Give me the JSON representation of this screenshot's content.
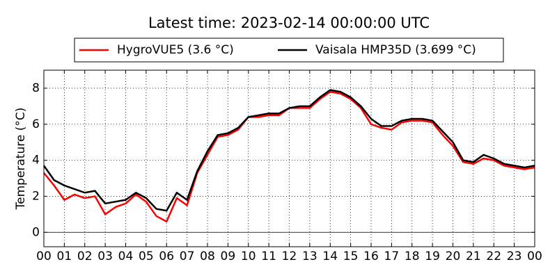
{
  "chart_data": {
    "type": "line",
    "title": "Latest time: 2023-02-14 00:00:00 UTC",
    "ylabel": "Temperature (°C)",
    "x": [
      0,
      0.5,
      1,
      1.5,
      2,
      2.5,
      3,
      3.5,
      4,
      4.5,
      5,
      5.5,
      6,
      6.5,
      7,
      7.5,
      8,
      8.5,
      9,
      9.5,
      10,
      10.5,
      11,
      11.5,
      12,
      12.5,
      13,
      13.5,
      14,
      14.5,
      15,
      15.5,
      16,
      16.5,
      17,
      17.5,
      18,
      18.5,
      19,
      19.5,
      20,
      20.5,
      21,
      21.5,
      22,
      22.5,
      23,
      23.5,
      24
    ],
    "series": [
      {
        "name": "HygroVUE5 (3.6 °C)",
        "color": "#ff0000",
        "values": [
          3.3,
          2.6,
          1.8,
          2.1,
          1.9,
          2.0,
          1.0,
          1.4,
          1.6,
          2.1,
          1.7,
          0.9,
          0.6,
          1.9,
          1.5,
          3.3,
          4.3,
          5.3,
          5.4,
          5.7,
          6.4,
          6.4,
          6.5,
          6.5,
          6.9,
          6.9,
          6.9,
          7.4,
          7.8,
          7.7,
          7.4,
          6.9,
          6.0,
          5.8,
          5.7,
          6.1,
          6.2,
          6.2,
          6.1,
          5.4,
          4.8,
          3.9,
          3.8,
          4.1,
          4.0,
          3.7,
          3.6,
          3.5,
          3.6
        ]
      },
      {
        "name": "Vaisala HMP35D (3.699 °C)",
        "color": "#000000",
        "values": [
          3.7,
          2.9,
          2.6,
          2.4,
          2.2,
          2.3,
          1.6,
          1.7,
          1.8,
          2.2,
          1.9,
          1.3,
          1.2,
          2.2,
          1.8,
          3.4,
          4.5,
          5.4,
          5.5,
          5.8,
          6.4,
          6.5,
          6.6,
          6.6,
          6.9,
          7.0,
          7.0,
          7.5,
          7.9,
          7.8,
          7.5,
          7.0,
          6.3,
          5.9,
          5.9,
          6.2,
          6.3,
          6.3,
          6.2,
          5.6,
          5.0,
          4.0,
          3.9,
          4.3,
          4.1,
          3.8,
          3.7,
          3.6,
          3.7
        ]
      }
    ],
    "xlim": [
      0,
      24
    ],
    "xticks": [
      {
        "value": 0,
        "label": "00"
      },
      {
        "value": 1,
        "label": "01"
      },
      {
        "value": 2,
        "label": "02"
      },
      {
        "value": 3,
        "label": "03"
      },
      {
        "value": 4,
        "label": "04"
      },
      {
        "value": 5,
        "label": "05"
      },
      {
        "value": 6,
        "label": "06"
      },
      {
        "value": 7,
        "label": "07"
      },
      {
        "value": 8,
        "label": "08"
      },
      {
        "value": 9,
        "label": "09"
      },
      {
        "value": 10,
        "label": "10"
      },
      {
        "value": 11,
        "label": "11"
      },
      {
        "value": 12,
        "label": "12"
      },
      {
        "value": 13,
        "label": "13"
      },
      {
        "value": 14,
        "label": "14"
      },
      {
        "value": 15,
        "label": "15"
      },
      {
        "value": 16,
        "label": "16"
      },
      {
        "value": 17,
        "label": "17"
      },
      {
        "value": 18,
        "label": "18"
      },
      {
        "value": 19,
        "label": "19"
      },
      {
        "value": 20,
        "label": "20"
      },
      {
        "value": 21,
        "label": "21"
      },
      {
        "value": 22,
        "label": "22"
      },
      {
        "value": 23,
        "label": "23"
      },
      {
        "value": 24,
        "label": "00"
      }
    ],
    "ylim": [
      -0.8,
      9
    ],
    "yticks": [
      0,
      2,
      4,
      6,
      8
    ],
    "grid": true,
    "legend": "top"
  }
}
